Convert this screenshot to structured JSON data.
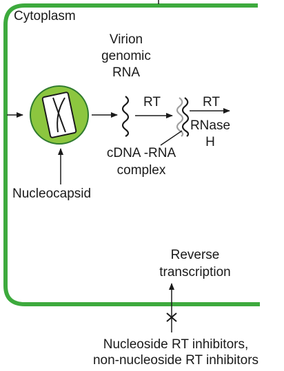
{
  "labels": {
    "cytoplasm": "Cytoplasm",
    "virion_line1": "Virion",
    "virion_line2": "genomic",
    "virion_line3": "RNA",
    "rt_first": "RT",
    "rt_second": "RT",
    "rnase_line1": "RNase",
    "rnase_line2": "H",
    "cdna_line1": "cDNA -RNA",
    "cdna_line2": "complex",
    "nucleocapsid": "Nucleocapsid",
    "reverse_line1": "Reverse",
    "reverse_line2": "transcription",
    "inhibitors_line1": "Nucleoside RT inhibitors,",
    "inhibitors_line2": "non-nucleoside RT inhibitors"
  },
  "colors": {
    "membrane": "#3daa3d",
    "nucleocapsid_fill": "#8cc63f",
    "nucleocapsid_stroke": "#2f7a2f",
    "ink": "#1a1a1a",
    "cdna_strand": "#a0a0a0"
  }
}
